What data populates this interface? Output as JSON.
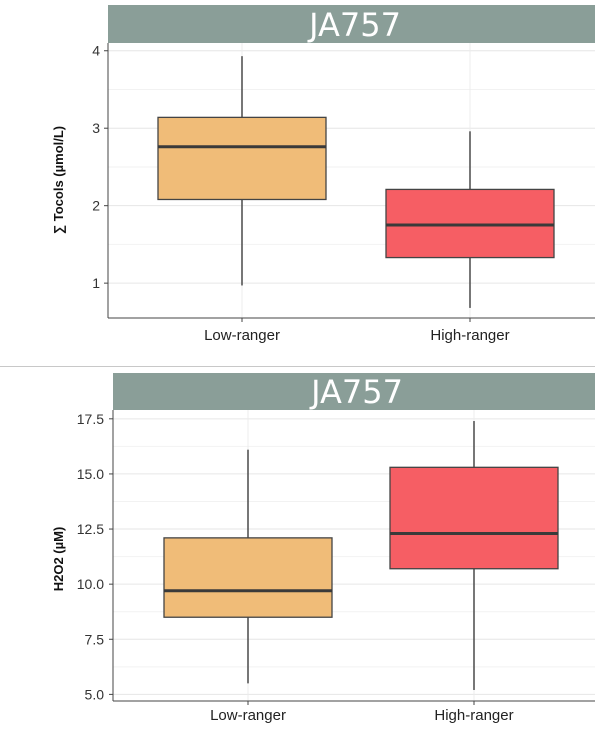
{
  "chart_data": [
    {
      "type": "box",
      "facet": "JA757",
      "ylabel": "∑ Tocols (µmol/L)",
      "ylim": [
        0.55,
        4.1
      ],
      "yticks": [
        1,
        2,
        3,
        4
      ],
      "ytick_labels": [
        "1",
        "2",
        "3",
        "4"
      ],
      "categories": [
        "Low-ranger",
        "High-ranger"
      ],
      "boxes": [
        {
          "category": "Low-ranger",
          "min": 0.97,
          "q1": 2.08,
          "median": 2.76,
          "q3": 3.14,
          "max": 3.93,
          "color": "#F0BC78"
        },
        {
          "category": "High-ranger",
          "min": 0.68,
          "q1": 1.33,
          "median": 1.75,
          "q3": 2.21,
          "max": 2.96,
          "color": "#F65E64"
        }
      ],
      "strip_color": "#8A9E98",
      "grid": true
    },
    {
      "type": "box",
      "facet": "JA757",
      "ylabel": "H2O2 (µM)",
      "ylim": [
        4.7,
        17.9
      ],
      "yticks": [
        5.0,
        7.5,
        10.0,
        12.5,
        15.0,
        17.5
      ],
      "ytick_labels": [
        "5.0",
        "7.5",
        "10.0",
        "12.5",
        "15.0",
        "17.5"
      ],
      "categories": [
        "Low-ranger",
        "High-ranger"
      ],
      "boxes": [
        {
          "category": "Low-ranger",
          "min": 5.5,
          "q1": 8.5,
          "median": 9.7,
          "q3": 12.1,
          "max": 16.1,
          "color": "#F0BC78"
        },
        {
          "category": "High-ranger",
          "min": 5.2,
          "q1": 10.7,
          "median": 12.3,
          "q3": 15.3,
          "max": 17.4,
          "color": "#F65E64"
        }
      ],
      "strip_color": "#8A9E98",
      "grid": true
    }
  ]
}
